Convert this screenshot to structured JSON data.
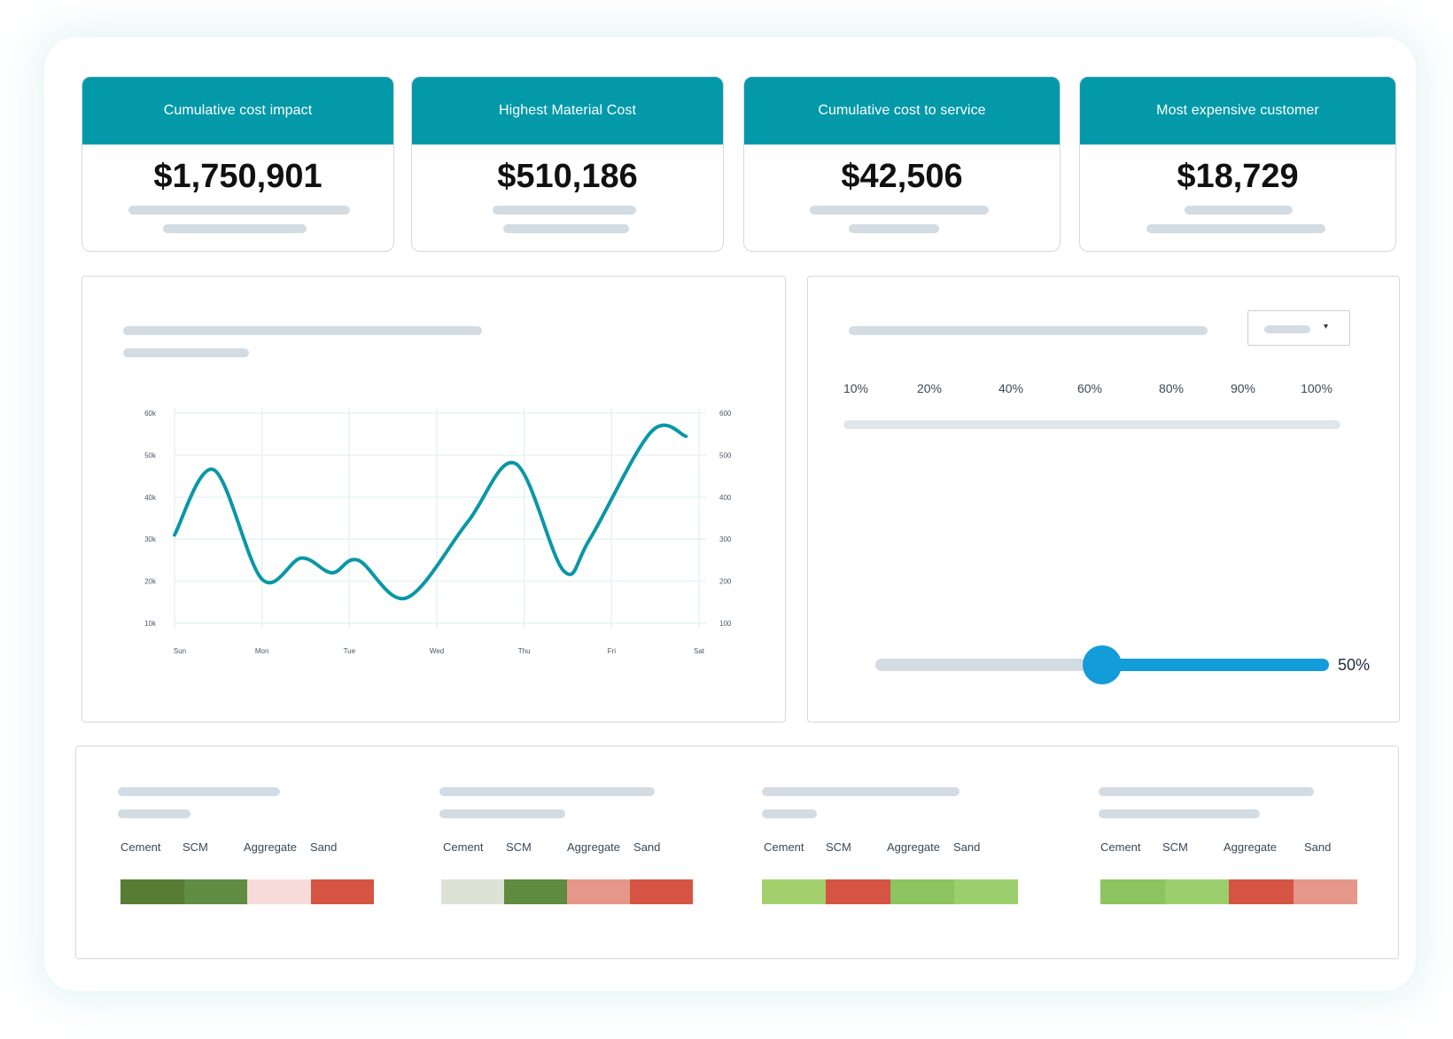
{
  "kpis": [
    {
      "title": "Cumulative cost impact",
      "value": "$1,750,901"
    },
    {
      "title": "Highest Material Cost",
      "value": "$510,186"
    },
    {
      "title": "Cumulative cost to service",
      "value": "$42,506"
    },
    {
      "title": "Most expensive customer",
      "value": "$18,729"
    }
  ],
  "chart_data": {
    "type": "line",
    "categories": [
      "Sun",
      "Mon",
      "Tue",
      "Wed",
      "Thu",
      "Fri",
      "Sat"
    ],
    "y_left_ticks": [
      "60k",
      "50k",
      "40k",
      "30k",
      "20k",
      "10k"
    ],
    "y_right_ticks": [
      "600",
      "500",
      "400",
      "300",
      "200",
      "100"
    ],
    "ylim": [
      10000,
      60000
    ],
    "grid": true,
    "color": "#0a97a6",
    "series": [
      {
        "x": [
          0,
          0.45,
          1,
          1.45,
          1.8,
          2.1,
          2.65,
          3.35,
          3.9,
          4.45,
          4.75,
          5.45,
          5.85
        ],
        "values": [
          31000,
          46500,
          20500,
          25500,
          22000,
          25000,
          16000,
          34000,
          48000,
          22500,
          30000,
          55500,
          54500
        ]
      }
    ]
  },
  "slider_panel": {
    "percent_labels": [
      "10%",
      "20%",
      "40%",
      "60%",
      "80%",
      "90%",
      "100%"
    ],
    "dropdown_caret": "▾",
    "slider_value_label": "50%",
    "slider_value": 0.5,
    "slider_color": "#129cd9"
  },
  "materials": [
    {
      "legend": [
        "Cement",
        "SCM",
        "Aggregate",
        "Sand"
      ],
      "colors": [
        "#577d35",
        "#608c43",
        "#f6dbd8",
        "#d65443"
      ]
    },
    {
      "legend": [
        "Cement",
        "SCM",
        "Aggregate",
        "Sand"
      ],
      "colors": [
        "#dce3d5",
        "#5e8b40",
        "#e5978a",
        "#d65443"
      ]
    },
    {
      "legend": [
        "Cement",
        "SCM",
        "Aggregate",
        "Sand"
      ],
      "colors": [
        "#a3d06d",
        "#d65443",
        "#8cc460",
        "#9bcf6d"
      ]
    },
    {
      "legend": [
        "Cement",
        "SCM",
        "Aggregate",
        "Sand"
      ],
      "colors": [
        "#8cc460",
        "#9bcf6d",
        "#d65443",
        "#e5978a"
      ]
    }
  ]
}
